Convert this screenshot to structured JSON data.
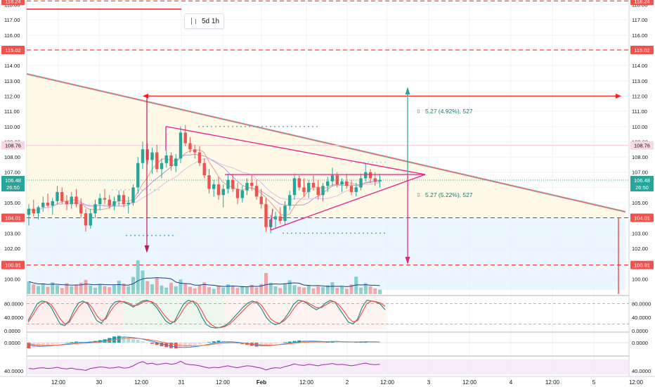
{
  "colors": {
    "up": "#26a69a",
    "down": "#ef5350",
    "triangle": "#e91e8c",
    "trend": "#ef5350",
    "grid": "#f0f3fa",
    "stoch_k": "#2b8a84",
    "stoch_d": "#ef5350",
    "rsi": "#9c27b0",
    "ma1": "#ef9a9a",
    "ma2": "#b39ddb",
    "ma3": "#e1bee7",
    "vol_ma": "#1e3a8a",
    "macd": "#1e88e5",
    "signal": "#ff7043",
    "horizontal": "#ff1a1a",
    "price_teal": "#26a69a"
  },
  "interval_label": "5d 1h",
  "chart_data": [
    {
      "type": "candlestick",
      "panel": "price",
      "ylim": [
        99.0,
        118.3
      ],
      "price_ticks": [
        "100.00",
        "101.00",
        "102.00",
        "103.00",
        "104.00",
        "105.00",
        "106.00",
        "107.00",
        "108.00",
        "109.00",
        "110.00",
        "111.00",
        "112.00",
        "113.00",
        "114.00",
        "115.00",
        "116.00",
        "117.00",
        "118.00"
      ],
      "time_labels": [
        "12:00",
        "30",
        "12:00",
        "31",
        "12:00",
        "Feb",
        "12:00",
        "2",
        "12:00",
        "3",
        "12:00",
        "4",
        "12:00",
        "5",
        "12:00"
      ],
      "horizontal_levels": [
        {
          "value": 118.24,
          "label": "118.24",
          "style": "dashed"
        },
        {
          "value": 115.02,
          "label": "115.02",
          "style": "dashed"
        },
        {
          "value": 104.01,
          "label": "104.01",
          "style": "dashed"
        },
        {
          "value": 100.91,
          "label": "100.91",
          "style": "dashed"
        }
      ],
      "marked_prices": [
        {
          "value": 108.76,
          "label": "108.76"
        },
        {
          "value": 106.48,
          "label": "106.48",
          "countdown": "26:50"
        }
      ],
      "measurements": [
        {
          "label": "5.27 (4.92%), 527",
          "direction": "up"
        },
        {
          "label": "5.27 (5.22%), 527",
          "direction": "down"
        }
      ],
      "candles": [
        [
          104.2,
          104.9,
          103.5,
          104.6
        ],
        [
          104.6,
          105.2,
          104.1,
          104.3
        ],
        [
          104.3,
          104.8,
          103.9,
          104.7
        ],
        [
          104.7,
          105.4,
          104.4,
          105.0
        ],
        [
          105.0,
          105.6,
          104.7,
          104.8
        ],
        [
          104.8,
          105.3,
          104.2,
          105.1
        ],
        [
          105.1,
          106.1,
          104.9,
          105.7
        ],
        [
          105.7,
          106.0,
          104.9,
          105.1
        ],
        [
          105.1,
          105.5,
          104.5,
          104.9
        ],
        [
          104.9,
          105.7,
          104.6,
          105.4
        ],
        [
          105.4,
          105.9,
          104.7,
          104.9
        ],
        [
          104.9,
          105.3,
          104.0,
          104.3
        ],
        [
          104.3,
          104.6,
          103.1,
          103.5
        ],
        [
          103.5,
          104.6,
          103.3,
          104.3
        ],
        [
          104.3,
          105.2,
          104.0,
          104.9
        ],
        [
          104.9,
          105.6,
          104.5,
          105.3
        ],
        [
          105.3,
          105.9,
          104.9,
          105.2
        ],
        [
          105.2,
          105.5,
          104.6,
          104.8
        ],
        [
          104.8,
          105.4,
          104.5,
          105.1
        ],
        [
          105.1,
          105.8,
          104.8,
          105.5
        ],
        [
          105.5,
          105.8,
          104.7,
          104.9
        ],
        [
          104.9,
          105.4,
          104.3,
          105.0
        ],
        [
          105.0,
          106.2,
          104.8,
          106.0
        ],
        [
          106.0,
          108.0,
          105.6,
          107.6
        ],
        [
          107.6,
          109.0,
          107.2,
          108.5
        ],
        [
          108.5,
          108.9,
          107.5,
          107.8
        ],
        [
          107.8,
          108.6,
          106.9,
          108.3
        ],
        [
          108.3,
          108.8,
          107.0,
          107.2
        ],
        [
          107.2,
          107.9,
          106.6,
          107.6
        ],
        [
          107.6,
          108.4,
          107.3,
          108.1
        ],
        [
          108.1,
          108.3,
          107.1,
          107.4
        ],
        [
          107.4,
          108.2,
          107.0,
          107.9
        ],
        [
          107.9,
          110.0,
          107.6,
          109.6
        ],
        [
          109.6,
          110.1,
          108.7,
          108.9
        ],
        [
          108.9,
          109.3,
          108.3,
          108.5
        ],
        [
          108.5,
          108.8,
          107.9,
          108.3
        ],
        [
          108.3,
          108.7,
          107.4,
          107.6
        ],
        [
          107.6,
          107.9,
          106.6,
          106.8
        ],
        [
          106.8,
          107.2,
          105.6,
          105.9
        ],
        [
          105.9,
          106.5,
          105.4,
          106.2
        ],
        [
          106.2,
          106.7,
          105.2,
          105.5
        ],
        [
          105.5,
          106.2,
          104.7,
          105.9
        ],
        [
          105.9,
          106.9,
          105.6,
          106.5
        ],
        [
          106.5,
          106.9,
          105.7,
          105.9
        ],
        [
          105.9,
          106.3,
          104.9,
          105.3
        ],
        [
          105.3,
          106.1,
          105.0,
          105.8
        ],
        [
          105.8,
          106.6,
          105.5,
          106.3
        ],
        [
          106.3,
          106.8,
          105.8,
          106.1
        ],
        [
          106.1,
          106.5,
          105.2,
          105.4
        ],
        [
          105.4,
          105.9,
          104.6,
          104.9
        ],
        [
          104.9,
          105.3,
          103.1,
          103.4
        ],
        [
          103.4,
          104.2,
          103.0,
          103.9
        ],
        [
          103.9,
          104.4,
          103.3,
          104.1
        ],
        [
          104.1,
          104.7,
          103.6,
          103.8
        ],
        [
          103.8,
          105.1,
          103.5,
          104.8
        ],
        [
          104.8,
          105.8,
          104.5,
          105.5
        ],
        [
          105.5,
          106.9,
          105.2,
          106.6
        ],
        [
          106.6,
          106.8,
          105.8,
          106.0
        ],
        [
          106.0,
          106.6,
          105.4,
          105.7
        ],
        [
          105.7,
          106.5,
          105.3,
          106.3
        ],
        [
          106.3,
          106.8,
          105.8,
          106.0
        ],
        [
          106.0,
          106.5,
          105.2,
          105.5
        ],
        [
          105.5,
          106.3,
          105.1,
          106.1
        ],
        [
          106.1,
          106.7,
          105.7,
          106.4
        ],
        [
          106.4,
          107.3,
          106.1,
          106.8
        ],
        [
          106.8,
          107.0,
          106.0,
          106.2
        ],
        [
          106.2,
          106.6,
          105.7,
          106.4
        ],
        [
          106.4,
          106.9,
          105.9,
          106.1
        ],
        [
          106.1,
          106.5,
          105.5,
          105.7
        ],
        [
          105.7,
          106.3,
          105.4,
          106.0
        ],
        [
          106.0,
          106.9,
          105.8,
          106.6
        ],
        [
          106.6,
          107.6,
          106.4,
          107.0
        ],
        [
          107.0,
          107.2,
          106.3,
          106.6
        ],
        [
          106.6,
          107.0,
          106.1,
          106.4
        ],
        [
          106.4,
          106.9,
          106.0,
          106.5
        ]
      ],
      "volumes": [
        3.1,
        2.4,
        2.0,
        2.6,
        1.8,
        2.9,
        2.2,
        1.5,
        2.7,
        1.9,
        2.3,
        2.8,
        3.5,
        2.1,
        1.6,
        2.4,
        2.0,
        1.7,
        2.2,
        3.3,
        2.6,
        1.9,
        4.2,
        8.3,
        5.8,
        3.2,
        2.4,
        3.9,
        2.1,
        1.6,
        2.8,
        1.9,
        3.6,
        2.5,
        1.8,
        1.4,
        2.2,
        2.9,
        1.7,
        1.3,
        2.1,
        1.6,
        2.4,
        1.9,
        1.5,
        2.0,
        1.7,
        2.3,
        1.6,
        2.5,
        5.2,
        2.8,
        1.9,
        1.5,
        2.6,
        3.4,
        2.2,
        1.8,
        1.6,
        2.1,
        1.4,
        1.9,
        1.7,
        2.2,
        2.9,
        1.5,
        1.8,
        1.3,
        2.4,
        4.3,
        1.6,
        2.7,
        1.9,
        1.4,
        1.1
      ]
    },
    {
      "type": "line",
      "panel": "stochastic",
      "ylim": [
        0,
        100
      ],
      "ticks": [
        "80.0000",
        "40.0000",
        "0.0000"
      ],
      "series": [
        {
          "values": [
            30,
            55,
            80,
            88,
            85,
            70,
            45,
            20,
            15,
            30,
            60,
            82,
            88,
            80,
            55,
            30,
            22,
            40,
            70,
            85,
            88,
            84,
            78,
            70,
            80,
            88,
            90,
            84,
            70,
            50,
            30,
            20,
            28,
            55,
            80,
            90,
            86,
            70,
            40,
            18,
            10,
            8,
            10,
            15,
            25,
            40,
            55,
            70,
            82,
            88,
            82,
            65,
            40,
            25,
            18,
            22,
            35,
            55,
            78,
            90,
            88,
            80,
            70,
            62,
            70,
            82,
            90,
            85,
            65,
            45,
            25,
            20,
            35,
            70,
            90,
            88,
            85,
            78,
            62
          ]
        },
        {
          "values": [
            25,
            45,
            68,
            82,
            86,
            78,
            58,
            35,
            20,
            25,
            48,
            70,
            84,
            84,
            68,
            45,
            30,
            35,
            58,
            76,
            86,
            86,
            82,
            74,
            76,
            84,
            88,
            86,
            78,
            60,
            42,
            28,
            25,
            42,
            65,
            82,
            88,
            80,
            58,
            32,
            18,
            10,
            9,
            12,
            20,
            32,
            46,
            60,
            74,
            84,
            86,
            75,
            55,
            35,
            25,
            22,
            30,
            45,
            65,
            82,
            88,
            84,
            76,
            68,
            68,
            76,
            85,
            86,
            75,
            58,
            38,
            26,
            30,
            55,
            80,
            88,
            86,
            82,
            72
          ]
        }
      ]
    },
    {
      "type": "histogram",
      "panel": "macd",
      "ticks": [
        "0.0000"
      ],
      "values": [
        -0.5,
        -0.45,
        -0.38,
        -0.3,
        -0.22,
        -0.18,
        -0.1,
        -0.05,
        0.02,
        0.05,
        0.1,
        0.08,
        0.05,
        0.1,
        0.15,
        0.22,
        0.3,
        0.42,
        0.55,
        0.6,
        0.52,
        0.4,
        0.3,
        0.25,
        0.1,
        0.0,
        -0.1,
        -0.2,
        -0.32,
        -0.4,
        -0.48,
        -0.5,
        -0.45,
        -0.38,
        -0.3,
        -0.22,
        -0.15,
        -0.05,
        0.05,
        0.12,
        0.18,
        0.15,
        0.1,
        0.05,
        -0.05,
        -0.12,
        -0.2,
        -0.28,
        -0.35,
        -0.32,
        -0.25,
        -0.18,
        -0.1,
        -0.02,
        0.05,
        0.1,
        0.15,
        0.2,
        0.18,
        0.15,
        0.1,
        0.08,
        0.05,
        0.08,
        0.12,
        0.1,
        0.06,
        0.03,
        0.02,
        0.05,
        0.08,
        0.1,
        0.06,
        0.04,
        0.02
      ]
    },
    {
      "type": "line",
      "panel": "rsi",
      "ticks": [
        "40.0000"
      ],
      "series": [
        {
          "values": [
            46,
            45,
            47,
            48,
            46,
            47,
            49,
            46,
            45,
            47,
            44,
            43,
            41,
            46,
            48,
            50,
            49,
            47,
            48,
            50,
            47,
            48,
            53,
            60,
            64,
            58,
            60,
            56,
            58,
            60,
            57,
            59,
            65,
            58,
            56,
            55,
            53,
            50,
            47,
            49,
            48,
            51,
            53,
            50,
            48,
            51,
            53,
            52,
            49,
            47,
            42,
            46,
            48,
            47,
            51,
            54,
            58,
            55,
            54,
            57,
            55,
            53,
            56,
            57,
            59,
            56,
            57,
            55,
            53,
            55,
            58,
            60,
            57,
            56,
            57
          ]
        }
      ]
    }
  ]
}
